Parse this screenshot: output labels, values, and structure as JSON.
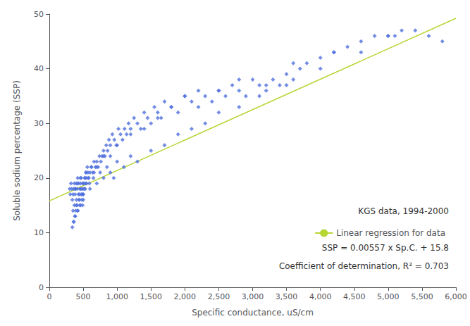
{
  "chart_data": {
    "type": "scatter",
    "xlabel": "Specific conductance, uS/cm",
    "ylabel": "Soluble sodium percentage (SSP)",
    "xlim": [
      0,
      6000
    ],
    "ylim": [
      0,
      50
    ],
    "xticks": [
      0,
      500,
      1000,
      1500,
      2000,
      2500,
      3000,
      3500,
      4000,
      4500,
      5000,
      5500,
      6000
    ],
    "yticks": [
      0,
      10,
      20,
      30,
      40,
      50
    ],
    "grid": false,
    "legend": "lower right",
    "annotations": [
      "KGS data, 1994-2000",
      "SSP = 0.00557 x Sp.C. + 15.8",
      "Coefficient of determination, R² = 0.703"
    ],
    "series": [
      {
        "type": "scatter",
        "marker": "diamond",
        "x": [
          300,
          310,
          320,
          330,
          340,
          350,
          360,
          370,
          380,
          390,
          400,
          410,
          420,
          430,
          440,
          450,
          460,
          470,
          480,
          490,
          500,
          510,
          520,
          530,
          540,
          350,
          360,
          370,
          380,
          390,
          400,
          410,
          420,
          430,
          440,
          450,
          460,
          470,
          480,
          490,
          500,
          510,
          520,
          530,
          540,
          550,
          560,
          570,
          580,
          590,
          600,
          620,
          640,
          660,
          680,
          700,
          720,
          740,
          760,
          780,
          800,
          820,
          840,
          860,
          880,
          900,
          930,
          960,
          990,
          1020,
          1050,
          1080,
          1110,
          1140,
          1170,
          1200,
          1250,
          1300,
          1350,
          1400,
          1450,
          1500,
          1550,
          1600,
          1650,
          1700,
          1800,
          1900,
          2000,
          2100,
          2200,
          2300,
          2400,
          2500,
          2600,
          2700,
          2800,
          2900,
          3000,
          3100,
          3200,
          3300,
          3400,
          3500,
          3600,
          3700,
          3800,
          4000,
          4200,
          4400,
          4600,
          4800,
          5000,
          5200,
          5400,
          5600,
          5800,
          340,
          360,
          380,
          400,
          420,
          440,
          460,
          480,
          500,
          550,
          600,
          650,
          700,
          750,
          800,
          850,
          900,
          950,
          1000,
          1100,
          1200,
          1300,
          1500,
          1700,
          1900,
          2100,
          2300,
          2500,
          2800,
          3100,
          3500,
          4000,
          4600,
          5100,
          380,
          420,
          460,
          500,
          540,
          580,
          620,
          660,
          700,
          800,
          900,
          1000,
          1200,
          1400,
          1600,
          1800,
          2000,
          2200,
          2500,
          2800,
          3200,
          3600,
          4200,
          5000
        ],
        "values": [
          18,
          17,
          19,
          18,
          16,
          17,
          18,
          19,
          17,
          18,
          19,
          18,
          20,
          19,
          17,
          18,
          19,
          20,
          18,
          19,
          17,
          19,
          20,
          18,
          21,
          14,
          12,
          15,
          13,
          14,
          16,
          15,
          14,
          17,
          16,
          15,
          18,
          17,
          16,
          15,
          17,
          19,
          18,
          20,
          19,
          20,
          22,
          21,
          20,
          19,
          21,
          22,
          21,
          23,
          22,
          23,
          22,
          24,
          23,
          24,
          25,
          24,
          26,
          25,
          27,
          26,
          28,
          27,
          26,
          29,
          28,
          27,
          29,
          28,
          30,
          29,
          31,
          30,
          29,
          32,
          31,
          30,
          33,
          32,
          31,
          34,
          33,
          32,
          35,
          34,
          33,
          35,
          34,
          36,
          35,
          37,
          36,
          35,
          38,
          37,
          36,
          38,
          37,
          39,
          38,
          40,
          41,
          42,
          43,
          44,
          45,
          46,
          46,
          47,
          47,
          46,
          45,
          11,
          12,
          13,
          15,
          14,
          16,
          15,
          17,
          16,
          19,
          18,
          20,
          19,
          21,
          20,
          22,
          21,
          20,
          23,
          22,
          24,
          23,
          25,
          26,
          28,
          29,
          30,
          32,
          33,
          35,
          37,
          40,
          43,
          46,
          18,
          19,
          20,
          18,
          21,
          20,
          22,
          21,
          22,
          24,
          24,
          26,
          28,
          29,
          31,
          33,
          35,
          36,
          36,
          38,
          37,
          41,
          43,
          46
        ]
      },
      {
        "type": "line",
        "name": "Linear regression for data",
        "x": [
          0,
          6000
        ],
        "values": [
          15.8,
          49.22
        ]
      }
    ]
  }
}
